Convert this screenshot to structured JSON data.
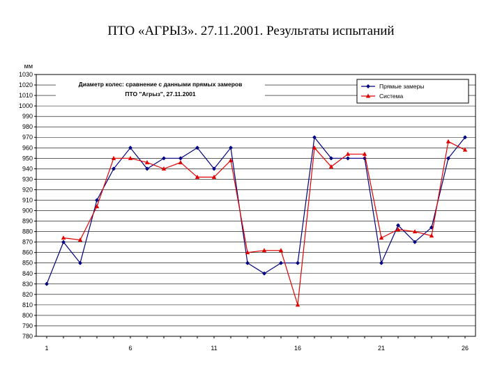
{
  "slide": {
    "title": "ПТО «АГРЫЗ». 27.11.2001. Результаты испытаний"
  },
  "chart_data": {
    "type": "line",
    "title_lines": [
      "Диаметр колес: сравнение с данными прямых замеров",
      "ПТО \"Агрыз\", 27.11.2001"
    ],
    "ylabel": "мм",
    "xlabel": "",
    "ylim": [
      780,
      1030
    ],
    "ytick_step": 10,
    "x": [
      1,
      2,
      3,
      4,
      5,
      6,
      7,
      8,
      9,
      10,
      11,
      12,
      13,
      14,
      15,
      16,
      17,
      18,
      19,
      20,
      21,
      22,
      23,
      24,
      25,
      26
    ],
    "x_tick_labels": [
      "1",
      "6",
      "11",
      "16",
      "21",
      "26"
    ],
    "x_tick_values": [
      1,
      6,
      11,
      16,
      21,
      26
    ],
    "grid": true,
    "legend_position": "top-right",
    "series": [
      {
        "name": "Прямые замеры",
        "color": "#000080",
        "marker": "diamond",
        "values": [
          830,
          870,
          850,
          910,
          940,
          960,
          940,
          950,
          950,
          960,
          940,
          960,
          850,
          840,
          850,
          850,
          970,
          950,
          950,
          950,
          850,
          886,
          870,
          884,
          950,
          970
        ]
      },
      {
        "name": "Система",
        "color": "#e00000",
        "marker": "triangle",
        "values": [
          null,
          874,
          872,
          904,
          950,
          950,
          946,
          940,
          946,
          932,
          932,
          948,
          860,
          862,
          862,
          810,
          960,
          942,
          954,
          954,
          874,
          882,
          880,
          876,
          966,
          958
        ]
      }
    ]
  }
}
